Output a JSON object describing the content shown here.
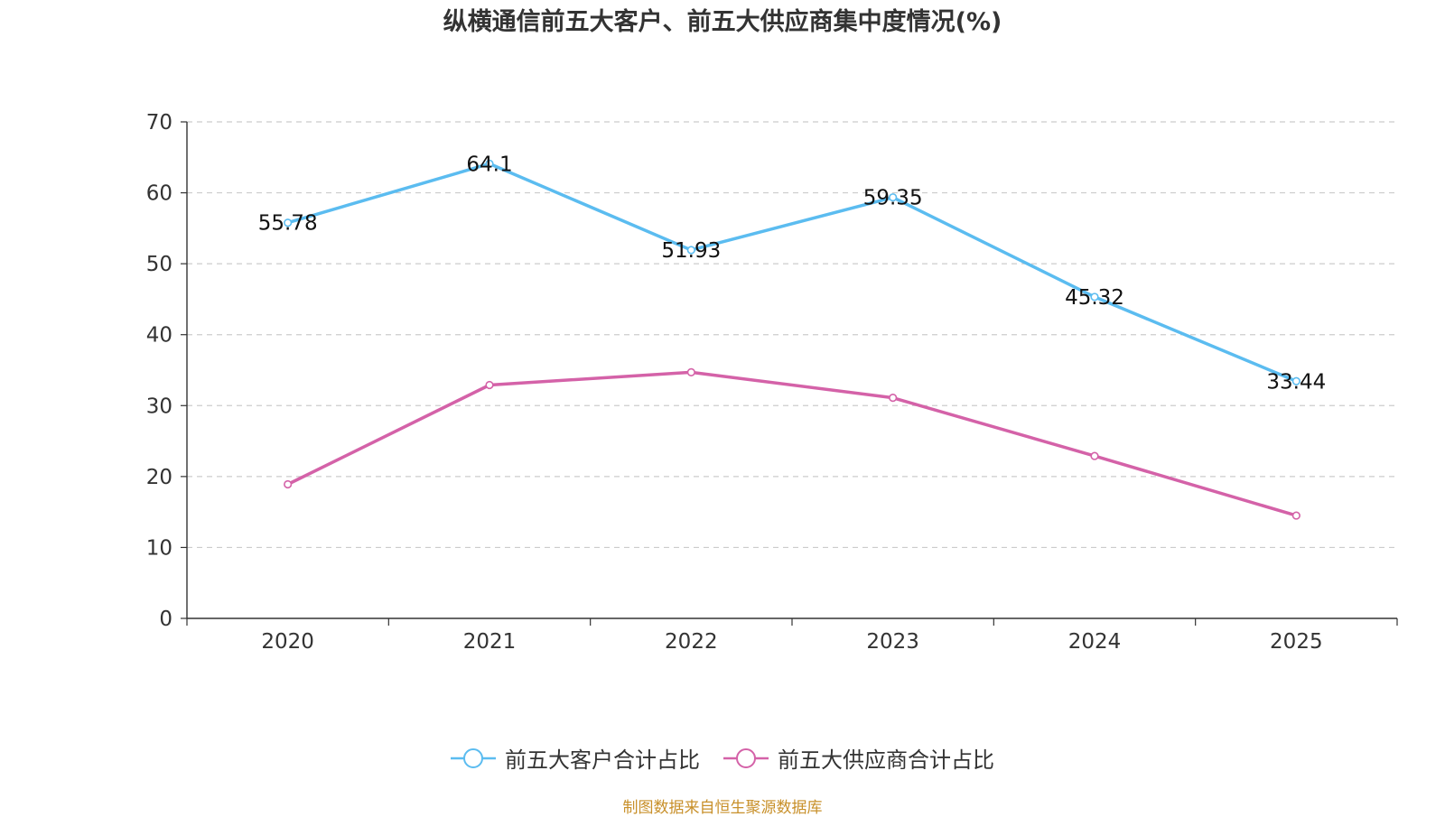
{
  "chart_data": {
    "type": "line",
    "title": "纵横通信前五大客户、前五大供应商集中度情况(%)",
    "categories": [
      "2020",
      "2021",
      "2022",
      "2023",
      "2024",
      "2025"
    ],
    "ylim": [
      0,
      70
    ],
    "yticks": [
      "0",
      "10",
      "20",
      "30",
      "40",
      "50",
      "60",
      "70"
    ],
    "grid": true,
    "legend_position": "bottom",
    "series": [
      {
        "name": "前五大客户合计占比",
        "color": "#5bbcf0",
        "values": [
          55.78,
          64.1,
          51.93,
          59.35,
          45.32,
          33.44
        ],
        "labels": [
          "55.78",
          "64.1",
          "51.93",
          "59.35",
          "45.32",
          "33.44"
        ]
      },
      {
        "name": "前五大供应商合计占比",
        "color": "#d462a8",
        "values": [
          18.9,
          32.9,
          34.7,
          31.1,
          22.9,
          14.5
        ],
        "labels": []
      }
    ]
  },
  "source_text": "制图数据来自恒生聚源数据库"
}
